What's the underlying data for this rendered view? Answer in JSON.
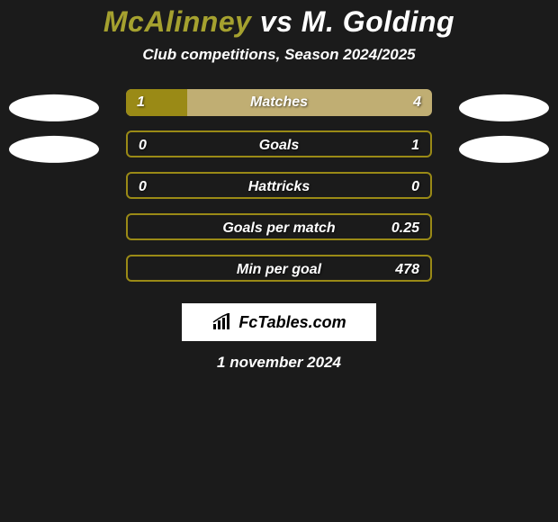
{
  "title": {
    "player1": "McAlinney",
    "vs": "vs",
    "player2": "M. Golding",
    "player1_color": "#a5a12f",
    "vs_color": "#ffffff",
    "player2_color": "#ffffff"
  },
  "subtitle": "Club competitions, Season 2024/2025",
  "bar_track_color": "#c0ae73",
  "bar_fill_color": "#9a8a16",
  "bar_empty_border": "#9a8a16",
  "background_color": "#1b1b1b",
  "badge_left_shown_rows": [
    0,
    1
  ],
  "badge_right_shown_rows": [
    0,
    1
  ],
  "rows": [
    {
      "label": "Matches",
      "left": "1",
      "right": "4",
      "fill_pct": 20,
      "show_badges": true
    },
    {
      "label": "Goals",
      "left": "0",
      "right": "1",
      "fill_pct": 4,
      "show_badges": true
    },
    {
      "label": "Hattricks",
      "left": "0",
      "right": "0",
      "fill_pct": 4,
      "show_badges": false
    },
    {
      "label": "Goals per match",
      "left": "",
      "right": "0.25",
      "fill_pct": 4,
      "show_badges": false
    },
    {
      "label": "Min per goal",
      "left": "",
      "right": "478",
      "fill_pct": 4,
      "show_badges": false
    }
  ],
  "logo_text": "FcTables.com",
  "date": "1 november 2024"
}
